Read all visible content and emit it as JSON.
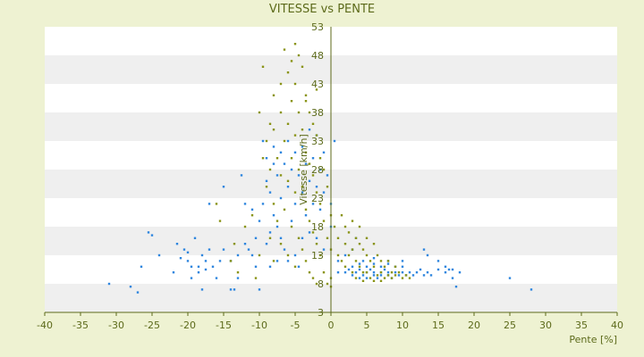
{
  "chart_data": {
    "type": "scatter",
    "title": "VITESSE vs PENTE",
    "xlabel": "Pente [%]",
    "ylabel": "Vitesse [km/h]",
    "xlim": [
      -40,
      40
    ],
    "ylim": [
      3,
      53
    ],
    "x_ticks": [
      -40,
      -35,
      -30,
      -25,
      -20,
      -15,
      -10,
      -5,
      0,
      5,
      10,
      15,
      20,
      25,
      30,
      35,
      40
    ],
    "y_ticks": [
      3,
      8,
      13,
      18,
      23,
      28,
      33,
      38,
      43,
      48,
      53
    ],
    "grid": true,
    "legend": "none",
    "colors": {
      "background": "#eef2d2",
      "plot_band_light": "#ffffff",
      "plot_band_dark": "#efefef",
      "axis": "#5c6a1a",
      "text": "#5c6a1a"
    },
    "series": [
      {
        "color": "#2e86de",
        "points": [
          [
            -31,
            8
          ],
          [
            -28,
            7.5
          ],
          [
            -27,
            6.5
          ],
          [
            -26.5,
            11
          ],
          [
            -25.5,
            17
          ],
          [
            -25,
            16.5
          ],
          [
            -24,
            13
          ],
          [
            -22,
            10
          ],
          [
            -21.5,
            15
          ],
          [
            -21,
            12.5
          ],
          [
            -20.5,
            14
          ],
          [
            -20,
            13.5
          ],
          [
            -20,
            12
          ],
          [
            -19.5,
            9
          ],
          [
            -19.5,
            11
          ],
          [
            -19,
            16
          ],
          [
            -18.5,
            11
          ],
          [
            -18.5,
            10
          ],
          [
            -18,
            13
          ],
          [
            -18,
            7
          ],
          [
            -17.5,
            12
          ],
          [
            -17.5,
            10.5
          ],
          [
            -17,
            14
          ],
          [
            -17,
            22
          ],
          [
            -16.5,
            11
          ],
          [
            -16,
            9
          ],
          [
            -15.5,
            12
          ],
          [
            -15,
            25
          ],
          [
            -15,
            14
          ],
          [
            -14,
            12
          ],
          [
            -14,
            7
          ],
          [
            -13.5,
            7
          ],
          [
            -13,
            9
          ],
          [
            -13,
            13
          ],
          [
            -12.5,
            27
          ],
          [
            -12,
            22
          ],
          [
            -12,
            15
          ],
          [
            -11.5,
            14
          ],
          [
            -11,
            21
          ],
          [
            -11,
            13
          ],
          [
            -10.5,
            16
          ],
          [
            -10.5,
            11
          ],
          [
            -10,
            19
          ],
          [
            -10,
            7
          ],
          [
            -9.5,
            33
          ],
          [
            -9.5,
            22
          ],
          [
            -9,
            30
          ],
          [
            -9,
            26
          ],
          [
            -9,
            15
          ],
          [
            -8.5,
            24
          ],
          [
            -8.5,
            17
          ],
          [
            -8.5,
            11
          ],
          [
            -8,
            32
          ],
          [
            -8,
            29
          ],
          [
            -8,
            20
          ],
          [
            -7.5,
            27
          ],
          [
            -7.5,
            18
          ],
          [
            -7.5,
            12
          ],
          [
            -7,
            31
          ],
          [
            -7,
            23
          ],
          [
            -7,
            16
          ],
          [
            -6.5,
            29
          ],
          [
            -6.5,
            14
          ],
          [
            -6,
            33
          ],
          [
            -6,
            25
          ],
          [
            -6,
            12
          ],
          [
            -5.5,
            28
          ],
          [
            -5.5,
            19
          ],
          [
            -5,
            31
          ],
          [
            -5,
            22
          ],
          [
            -5,
            13
          ],
          [
            -4.5,
            27
          ],
          [
            -4.5,
            11
          ],
          [
            -4,
            32
          ],
          [
            -4,
            24
          ],
          [
            -4,
            16
          ],
          [
            -3.5,
            29
          ],
          [
            -3.5,
            20
          ],
          [
            -3,
            35
          ],
          [
            -3,
            26
          ],
          [
            -3,
            17
          ],
          [
            -2.5,
            30
          ],
          [
            -2.5,
            22
          ],
          [
            -2,
            34
          ],
          [
            -2,
            25
          ],
          [
            -2,
            16
          ],
          [
            -1.5,
            28
          ],
          [
            -1.5,
            21
          ],
          [
            -1,
            31
          ],
          [
            -1,
            24
          ],
          [
            -1,
            14
          ],
          [
            -0.5,
            27
          ],
          [
            0,
            22
          ],
          [
            0,
            18
          ],
          [
            0.5,
            33
          ],
          [
            1,
            12
          ],
          [
            1,
            10
          ],
          [
            2,
            10
          ],
          [
            2.5,
            10.5
          ],
          [
            3,
            9.5
          ],
          [
            3.5,
            10
          ],
          [
            4,
            9
          ],
          [
            4,
            10.5
          ],
          [
            4.5,
            9.5
          ],
          [
            5,
            10
          ],
          [
            5,
            9
          ],
          [
            5.5,
            10.5
          ],
          [
            6,
            9.5
          ],
          [
            6,
            10
          ],
          [
            6.5,
            9
          ],
          [
            7,
            10
          ],
          [
            7,
            9.5
          ],
          [
            7.5,
            10.5
          ],
          [
            8,
            9.5
          ],
          [
            8,
            10
          ],
          [
            8.5,
            9
          ],
          [
            9,
            10
          ],
          [
            9.5,
            9.5
          ],
          [
            10,
            10
          ],
          [
            10.5,
            9.5
          ],
          [
            11,
            10
          ],
          [
            11.5,
            9.5
          ],
          [
            12,
            10
          ],
          [
            12.5,
            10.5
          ],
          [
            13,
            9.5
          ],
          [
            13.5,
            10
          ],
          [
            14,
            9.5
          ],
          [
            15,
            10.5
          ],
          [
            16,
            10
          ],
          [
            17,
            10.5
          ],
          [
            18,
            10
          ],
          [
            3,
            11
          ],
          [
            4,
            11.5
          ],
          [
            5,
            11
          ],
          [
            6,
            11.5
          ],
          [
            7,
            11
          ],
          [
            8,
            11.5
          ],
          [
            9,
            11
          ],
          [
            10,
            11
          ],
          [
            4.5,
            12
          ],
          [
            6,
            12.5
          ],
          [
            8,
            12
          ],
          [
            10,
            12
          ],
          [
            13,
            14
          ],
          [
            13.5,
            13
          ],
          [
            15,
            12
          ],
          [
            16,
            11
          ],
          [
            16.5,
            10.5
          ],
          [
            17,
            9
          ],
          [
            17.5,
            7.5
          ],
          [
            25,
            9
          ],
          [
            28,
            7
          ],
          [
            2,
            13
          ],
          [
            3,
            14
          ],
          [
            3.5,
            16
          ]
        ]
      },
      {
        "color": "#8a9418",
        "points": [
          [
            -16,
            22
          ],
          [
            -15.5,
            19
          ],
          [
            -14,
            12
          ],
          [
            -13.5,
            15
          ],
          [
            -13,
            10
          ],
          [
            -12,
            18
          ],
          [
            -11,
            20
          ],
          [
            -10.5,
            9
          ],
          [
            -10,
            38
          ],
          [
            -10,
            13
          ],
          [
            -9.5,
            30
          ],
          [
            -9,
            25
          ],
          [
            -9,
            33
          ],
          [
            -8.5,
            28
          ],
          [
            -8.5,
            16
          ],
          [
            -8,
            35
          ],
          [
            -8,
            22
          ],
          [
            -8,
            12
          ],
          [
            -7.5,
            30
          ],
          [
            -7.5,
            19
          ],
          [
            -7,
            38
          ],
          [
            -7,
            27
          ],
          [
            -7,
            15
          ],
          [
            -6.5,
            49
          ],
          [
            -6.5,
            33
          ],
          [
            -6.5,
            21
          ],
          [
            -6,
            45
          ],
          [
            -6,
            36
          ],
          [
            -6,
            26
          ],
          [
            -6,
            13
          ],
          [
            -5.5,
            47
          ],
          [
            -5.5,
            40
          ],
          [
            -5.5,
            30
          ],
          [
            -5.5,
            18
          ],
          [
            -5,
            50
          ],
          [
            -5,
            43
          ],
          [
            -5,
            34
          ],
          [
            -5,
            24
          ],
          [
            -5,
            11
          ],
          [
            -4.5,
            48
          ],
          [
            -4.5,
            38
          ],
          [
            -4.5,
            28
          ],
          [
            -4.5,
            16
          ],
          [
            -4,
            46
          ],
          [
            -4,
            35
          ],
          [
            -4,
            25
          ],
          [
            -4,
            14
          ],
          [
            -3.5,
            41
          ],
          [
            -3.5,
            31
          ],
          [
            -3.5,
            21
          ],
          [
            -3.5,
            12
          ],
          [
            -3,
            38
          ],
          [
            -3,
            29
          ],
          [
            -3,
            19
          ],
          [
            -3,
            10
          ],
          [
            -2.5,
            36
          ],
          [
            -2.5,
            27
          ],
          [
            -2.5,
            17
          ],
          [
            -2.5,
            9
          ],
          [
            -2,
            34
          ],
          [
            -2,
            24
          ],
          [
            -2,
            15
          ],
          [
            -2,
            8
          ],
          [
            -1.5,
            30
          ],
          [
            -1.5,
            22
          ],
          [
            -1.5,
            13
          ],
          [
            -1,
            28
          ],
          [
            -1,
            19
          ],
          [
            -1,
            10
          ],
          [
            -0.5,
            25
          ],
          [
            -0.5,
            16
          ],
          [
            -0.5,
            8
          ],
          [
            0,
            20
          ],
          [
            0,
            14
          ],
          [
            0,
            9
          ],
          [
            0,
            7.5
          ],
          [
            0.5,
            18
          ],
          [
            1,
            16
          ],
          [
            1,
            13
          ],
          [
            1.5,
            20
          ],
          [
            1.5,
            12
          ],
          [
            2,
            18
          ],
          [
            2,
            15
          ],
          [
            2,
            11
          ],
          [
            2.5,
            17
          ],
          [
            2.5,
            13
          ],
          [
            3,
            19
          ],
          [
            3,
            14
          ],
          [
            3,
            10
          ],
          [
            3.5,
            16
          ],
          [
            3.5,
            12
          ],
          [
            3.5,
            9
          ],
          [
            4,
            18
          ],
          [
            4,
            15
          ],
          [
            4,
            11
          ],
          [
            4.5,
            14
          ],
          [
            4.5,
            10
          ],
          [
            4.5,
            8.5
          ],
          [
            5,
            16
          ],
          [
            5,
            13
          ],
          [
            5,
            10
          ],
          [
            5.5,
            12
          ],
          [
            5.5,
            9
          ],
          [
            6,
            15
          ],
          [
            6,
            11
          ],
          [
            6,
            8.5
          ],
          [
            6.5,
            13
          ],
          [
            6.5,
            9.5
          ],
          [
            7,
            12
          ],
          [
            7,
            10
          ],
          [
            7,
            8.5
          ],
          [
            7.5,
            11
          ],
          [
            7.5,
            9
          ],
          [
            8,
            12
          ],
          [
            8,
            9.5
          ],
          [
            8.5,
            10
          ],
          [
            8.5,
            9
          ],
          [
            9,
            11
          ],
          [
            9,
            9.5
          ],
          [
            9.5,
            10
          ],
          [
            10,
            9
          ],
          [
            10.5,
            9.5
          ],
          [
            11,
            9
          ],
          [
            -9.5,
            46
          ],
          [
            -8,
            41
          ],
          [
            -8.5,
            36
          ],
          [
            -7,
            43
          ],
          [
            -3.5,
            40
          ],
          [
            -2,
            42
          ]
        ]
      }
    ]
  }
}
